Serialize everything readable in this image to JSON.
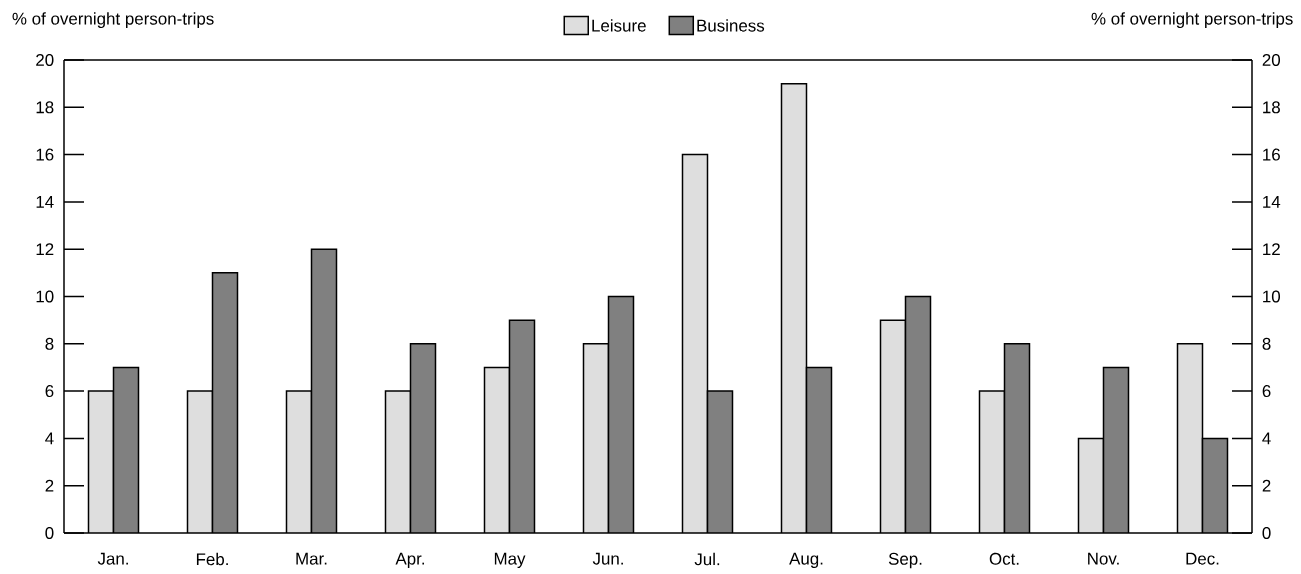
{
  "chart_data": {
    "type": "bar",
    "ylabel": "% of overnight person-trips",
    "y2label": "% of overnight person-trips",
    "categories": [
      "Jan.",
      "Feb.",
      "Mar.",
      "Apr.",
      "May",
      "Jun.",
      "Jul.",
      "Aug.",
      "Sep.",
      "Oct.",
      "Nov.",
      "Dec."
    ],
    "series": [
      {
        "name": "Leisure",
        "color": "#dedede",
        "values": [
          6,
          6,
          6,
          6,
          7,
          8,
          16,
          19,
          9,
          6,
          4,
          8
        ]
      },
      {
        "name": "Business",
        "color": "#808080",
        "values": [
          7,
          11,
          12,
          8,
          9,
          10,
          6,
          7,
          10,
          8,
          7,
          4
        ]
      }
    ],
    "ylim": [
      0,
      20
    ],
    "yticks": [
      0,
      2,
      4,
      6,
      8,
      10,
      12,
      14,
      16,
      18,
      20
    ],
    "y2lim": [
      0,
      20
    ],
    "y2ticks": [
      0,
      2,
      4,
      6,
      8,
      10,
      12,
      14,
      16,
      18,
      20
    ],
    "legend": "top",
    "grid": false
  }
}
